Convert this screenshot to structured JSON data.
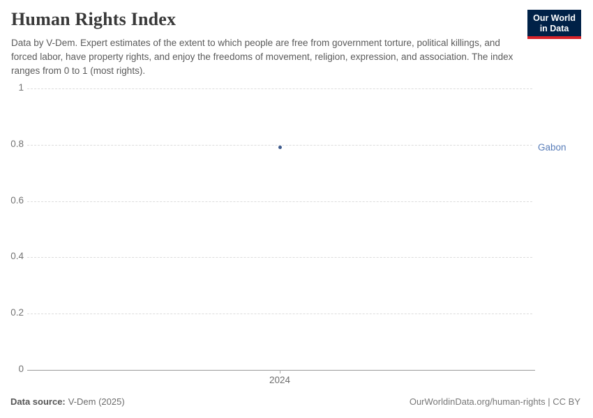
{
  "header": {
    "title": "Human Rights Index",
    "subtitle": "Data by V-Dem. Expert estimates of the extent to which people are free from government torture, political killings, and forced labor, have property rights, and enjoy the freedoms of movement, religion, expression, and association. The index ranges from 0 to 1 (most rights)."
  },
  "logo": {
    "line1": "Our World",
    "line2": "in Data",
    "bg_color": "#002147",
    "accent_color": "#d8232a"
  },
  "chart_data": {
    "type": "scatter",
    "title": "Human Rights Index",
    "series": [
      {
        "name": "Gabon",
        "point_color": "#3d5a8d",
        "label_color": "#577cb8",
        "points": [
          {
            "x": 2024,
            "y": 0.79
          }
        ]
      }
    ],
    "xlabel": "",
    "ylabel": "",
    "x_ticks": [
      2024
    ],
    "y_ticks": [
      0,
      0.2,
      0.4,
      0.6,
      0.8,
      1
    ],
    "ylim": [
      0,
      1
    ],
    "xlim": [
      2023.5,
      2024.5
    ],
    "grid": "horizontal-dashed",
    "legend_position": "right-entity-label"
  },
  "footer": {
    "source_label": "Data source:",
    "source_value": "V-Dem (2025)",
    "attribution": "OurWorldinData.org/human-rights | CC BY"
  }
}
